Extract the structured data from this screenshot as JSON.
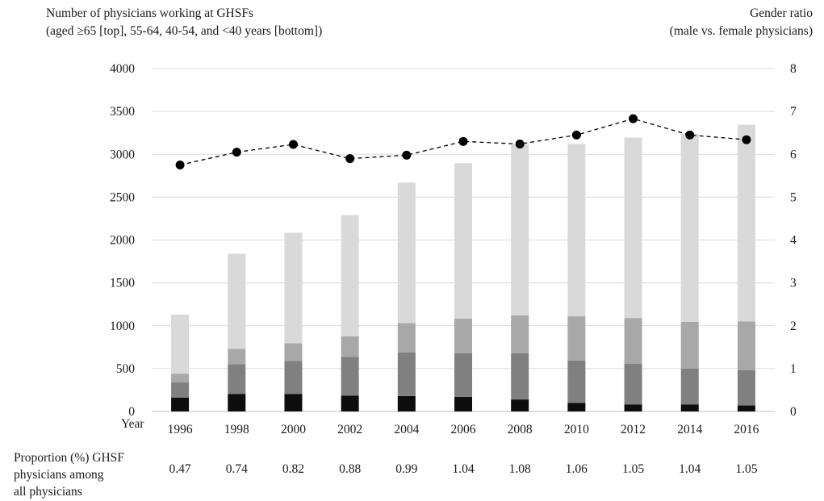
{
  "chart_data": {
    "type": "bar",
    "left_axis_title": [
      "Number of physicians working at GHSFs",
      "(aged ≥65 [top], 55-64, 40-54, and <40 years [bottom])"
    ],
    "right_axis_title": [
      "Gender ratio",
      "(male vs. female physicians)"
    ],
    "x_axis_label": "Year",
    "categories": [
      "1996",
      "1998",
      "2000",
      "2002",
      "2004",
      "2006",
      "2008",
      "2010",
      "2012",
      "2014",
      "2016"
    ],
    "ylim_left": [
      0,
      4000
    ],
    "yticks_left": [
      "0",
      "500",
      "1000",
      "1500",
      "2000",
      "2500",
      "3000",
      "3500",
      "4000"
    ],
    "ylim_right": [
      0,
      8
    ],
    "yticks_right": [
      "0",
      "1",
      "2",
      "3",
      "4",
      "5",
      "6",
      "7",
      "8"
    ],
    "grid": true,
    "stacked_series": [
      {
        "name": "<40",
        "color": "#0d0d0d",
        "values": [
          160,
          205,
          205,
          185,
          180,
          170,
          140,
          100,
          80,
          80,
          70
        ]
      },
      {
        "name": "40-54",
        "color": "#808080",
        "values": [
          180,
          345,
          385,
          450,
          510,
          510,
          540,
          495,
          475,
          420,
          410
        ]
      },
      {
        "name": "55-64",
        "color": "#a8a8a8",
        "values": [
          100,
          180,
          205,
          240,
          340,
          405,
          440,
          515,
          535,
          545,
          570
        ]
      },
      {
        "name": "≥65",
        "color": "#d9d9d9",
        "values": [
          690,
          1110,
          1290,
          1415,
          1640,
          1810,
          1995,
          2010,
          2105,
          2195,
          2295
        ]
      }
    ],
    "line_series": {
      "name": "Gender ratio",
      "axis": "right",
      "style": "dashed",
      "color": "#000000",
      "values": [
        5.75,
        6.05,
        6.23,
        5.9,
        5.98,
        6.3,
        6.24,
        6.45,
        6.83,
        6.45,
        6.34
      ]
    },
    "proportion_row": {
      "label": [
        "Proportion (%) GHSF",
        "physicians among",
        "all physicians"
      ],
      "values": [
        "0.47",
        "0.74",
        "0.82",
        "0.88",
        "0.99",
        "1.04",
        "1.08",
        "1.06",
        "1.05",
        "1.04",
        "1.05"
      ]
    }
  }
}
